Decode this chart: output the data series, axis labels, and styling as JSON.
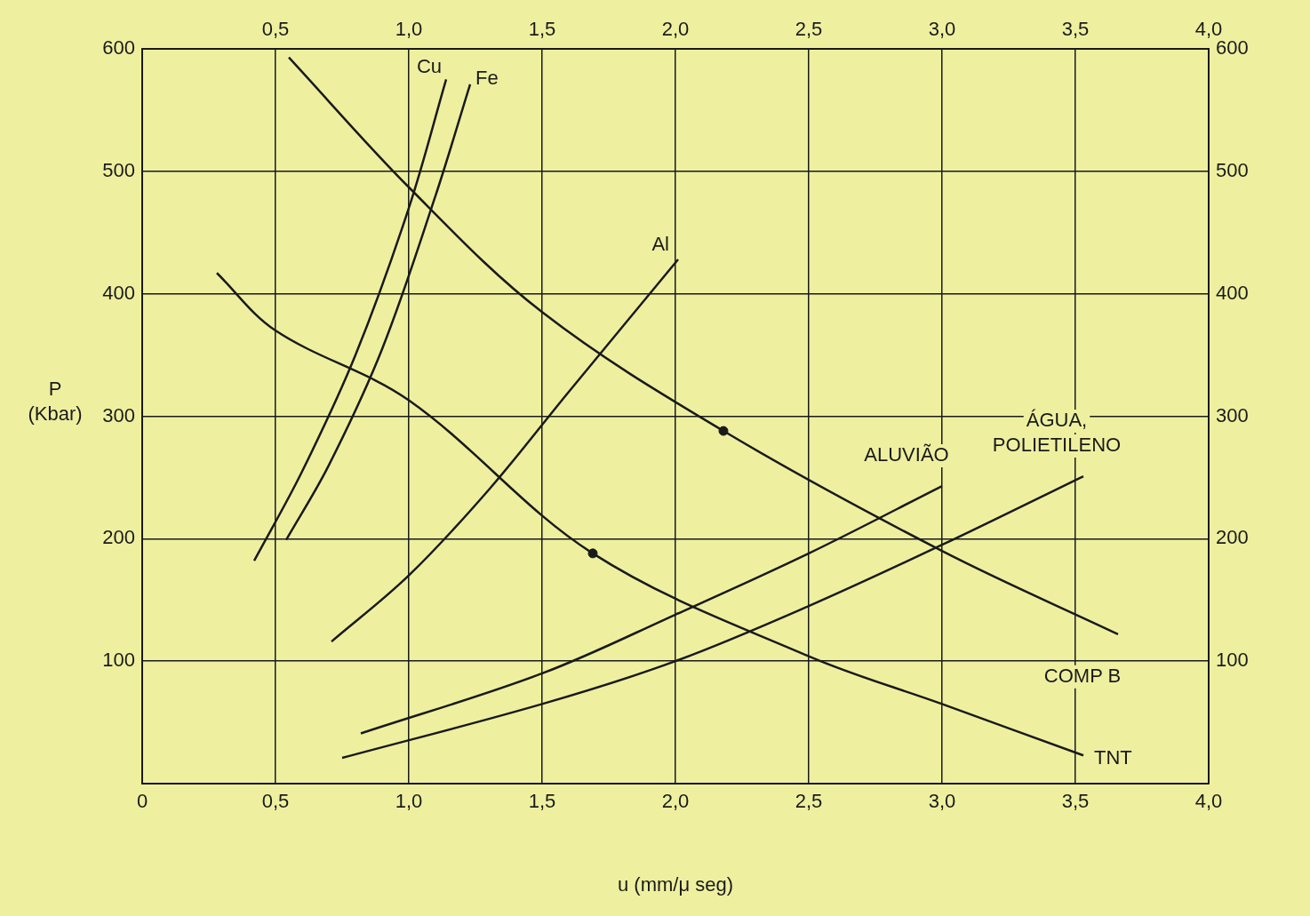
{
  "chart_data": {
    "type": "line",
    "xlabel": "u (mm/μ seg)",
    "ylabel": "P (Kbar)",
    "xlim": [
      0,
      4
    ],
    "xticks": [
      0,
      {
        "value": 0.5,
        "label": "0,5"
      },
      {
        "value": 1,
        "label": "1,0"
      },
      {
        "value": 1.5,
        "label": "1,5"
      },
      {
        "value": 2,
        "label": "2,0"
      },
      {
        "value": 2.5,
        "label": "2,5"
      },
      {
        "value": 3,
        "label": "3,0"
      },
      {
        "value": 3.5,
        "label": "3,5"
      },
      {
        "value": 4,
        "label": "4,0"
      }
    ],
    "x2lim": [
      0,
      4
    ],
    "x2ticks": [
      {
        "value": 0.5,
        "label": "0,5"
      },
      {
        "value": 1,
        "label": "1,0"
      },
      {
        "value": 1.5,
        "label": "1,5"
      },
      {
        "value": 2,
        "label": "2,0"
      },
      {
        "value": 2.5,
        "label": "2,5"
      },
      {
        "value": 3,
        "label": "3,0"
      },
      {
        "value": 3.5,
        "label": "3,5"
      },
      {
        "value": 4,
        "label": "4,0"
      }
    ],
    "ylim": [
      0,
      600
    ],
    "yticks": [
      100,
      200,
      300,
      400,
      500,
      600
    ],
    "y2lim": [
      0,
      600
    ],
    "y2ticks": [
      100,
      200,
      300,
      400,
      500,
      600
    ],
    "grid": true,
    "legend": false,
    "marker": "none",
    "line_style": "solid",
    "series": [
      {
        "name": "Cu",
        "color": "#1a1a1a",
        "x": [
          0.42,
          0.6,
          0.8,
          1.0,
          1.14
        ],
        "values": [
          182,
          255,
          350,
          470,
          575
        ]
      },
      {
        "name": "Fe",
        "color": "#1a1a1a",
        "x": [
          0.54,
          0.7,
          0.9,
          1.1,
          1.23
        ],
        "values": [
          199,
          260,
          355,
          480,
          571
        ]
      },
      {
        "name": "Al",
        "color": "#1a1a1a",
        "x": [
          0.71,
          1.0,
          1.3,
          1.6,
          2.01
        ],
        "values": [
          116,
          170,
          240,
          320,
          428
        ]
      },
      {
        "name": "COMP B",
        "color": "#1a1a1a",
        "x": [
          0.55,
          1.0,
          1.5,
          2.18,
          3.0,
          3.66
        ],
        "values": [
          593,
          487,
          385,
          288,
          190,
          122
        ]
      },
      {
        "name": "TNT",
        "color": "#1a1a1a",
        "x": [
          0.28,
          0.5,
          1.0,
          1.69,
          2.5,
          3.0,
          3.53
        ],
        "values": [
          417,
          370,
          313,
          188,
          104,
          65,
          23
        ]
      },
      {
        "name": "ALUVIÃO",
        "color": "#1a1a1a",
        "x": [
          0.82,
          1.5,
          2.0,
          2.5,
          3.0
        ],
        "values": [
          41,
          90,
          138,
          188,
          243
        ]
      },
      {
        "name": "ÁGUA, POLIETILENO",
        "color": "#1a1a1a",
        "x": [
          0.75,
          1.5,
          2.0,
          2.5,
          3.0,
          3.53
        ],
        "values": [
          21,
          65,
          100,
          145,
          195,
          251
        ]
      },
      {
        "type": "scatter",
        "marker": "circle",
        "color": "#1a1a1a",
        "x": [
          2.18,
          1.69
        ],
        "values": [
          288,
          188
        ]
      }
    ]
  }
}
